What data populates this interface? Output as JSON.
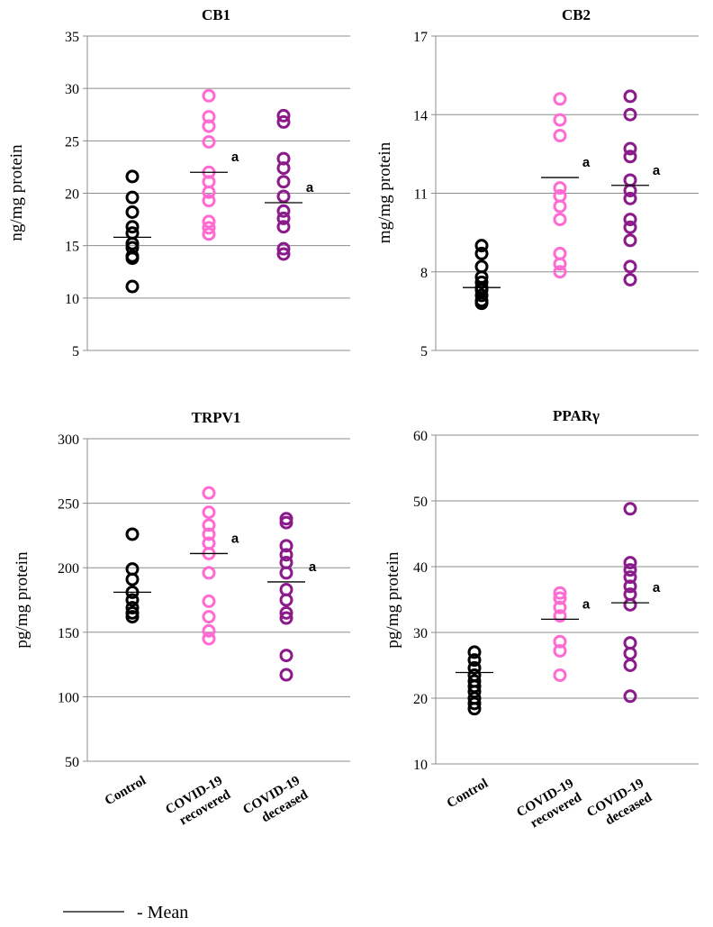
{
  "chart_data": [
    {
      "type": "scatter",
      "title": "CB1",
      "ylabel": "ng/mg protein",
      "ylim": [
        5,
        35
      ],
      "yticks": [
        5,
        10,
        15,
        20,
        25,
        30,
        35
      ],
      "grid": true,
      "categories": [
        "Control",
        "COVID-19 recovered",
        "COVID-19 deceased"
      ],
      "series": [
        {
          "values": [
            21.6,
            19.6,
            18.2,
            16.8,
            16.2,
            15.2,
            14.8,
            14.0,
            13.8,
            11.1
          ],
          "mean": 15.8
        },
        {
          "values": [
            29.3,
            27.3,
            26.4,
            24.9,
            22.0,
            21.1,
            20.1,
            19.3,
            17.3,
            16.7,
            16.1
          ],
          "mean": 22.0,
          "annotation": "a"
        },
        {
          "values": [
            27.4,
            26.8,
            23.3,
            22.4,
            21.1,
            19.7,
            18.3,
            17.6,
            16.8,
            14.7,
            14.2
          ],
          "mean": 19.1,
          "annotation": "a"
        }
      ]
    },
    {
      "type": "scatter",
      "title": "CB2",
      "ylabel": "mg/mg protein",
      "ylim": [
        5,
        17
      ],
      "yticks": [
        5,
        8,
        11,
        14,
        17
      ],
      "grid": true,
      "categories": [
        "Control",
        "COVID-19 recovered",
        "COVID-19 deceased"
      ],
      "series": [
        {
          "values": [
            9.0,
            8.7,
            8.2,
            7.8,
            7.6,
            7.4,
            7.3,
            7.1,
            6.9,
            6.8
          ],
          "mean": 7.4
        },
        {
          "values": [
            14.6,
            13.8,
            13.2,
            11.2,
            10.9,
            10.5,
            10.0,
            8.7,
            8.3,
            8.0
          ],
          "mean": 11.6,
          "annotation": "a"
        },
        {
          "values": [
            14.7,
            14.0,
            12.7,
            12.4,
            11.5,
            11.1,
            10.8,
            10.0,
            9.7,
            9.2,
            8.2,
            7.7
          ],
          "mean": 11.3,
          "annotation": "a"
        }
      ]
    },
    {
      "type": "scatter",
      "title": "TRPV1",
      "ylabel": "pg/mg protein",
      "ylim": [
        50,
        300
      ],
      "yticks": [
        50,
        100,
        150,
        200,
        250,
        300
      ],
      "grid": true,
      "categories": [
        "Control",
        "COVID-19 recovered",
        "COVID-19 deceased"
      ],
      "series": [
        {
          "values": [
            226,
            199,
            191,
            181,
            175,
            169,
            165,
            162
          ],
          "mean": 181
        },
        {
          "values": [
            258,
            243,
            233,
            226,
            219,
            211,
            196,
            174,
            162,
            151,
            145
          ],
          "mean": 211,
          "annotation": "a"
        },
        {
          "values": [
            238,
            235,
            217,
            210,
            204,
            196,
            183,
            175,
            165,
            161,
            132,
            117
          ],
          "mean": 189,
          "annotation": "a"
        }
      ]
    },
    {
      "type": "scatter",
      "title": "PPARγ",
      "ylabel": "pg/mg protein",
      "ylim": [
        10,
        60
      ],
      "yticks": [
        10,
        20,
        30,
        40,
        50,
        60
      ],
      "grid": true,
      "categories": [
        "Control",
        "COVID-19 recovered",
        "COVID-19 deceased"
      ],
      "series": [
        {
          "values": [
            27.0,
            25.8,
            24.6,
            23.5,
            22.6,
            21.8,
            21.0,
            20.0,
            19.2,
            18.4
          ],
          "mean": 23.9
        },
        {
          "values": [
            36.0,
            35.2,
            33.8,
            32.5,
            28.6,
            27.2,
            23.5
          ],
          "mean": 32.0,
          "annotation": "a"
        },
        {
          "values": [
            48.8,
            40.6,
            39.5,
            38.4,
            37.0,
            35.8,
            34.2,
            28.4,
            26.8,
            25.0,
            20.3
          ],
          "mean": 34.5,
          "annotation": "a"
        }
      ]
    }
  ],
  "category_labels": [
    [
      "Control"
    ],
    [
      "COVID-19",
      "recovered"
    ],
    [
      "COVID-19",
      "deceased"
    ]
  ],
  "colors": [
    "#000000",
    "#ff6bd3",
    "#8b1a8b"
  ],
  "legend": {
    "text": "- Mean"
  }
}
